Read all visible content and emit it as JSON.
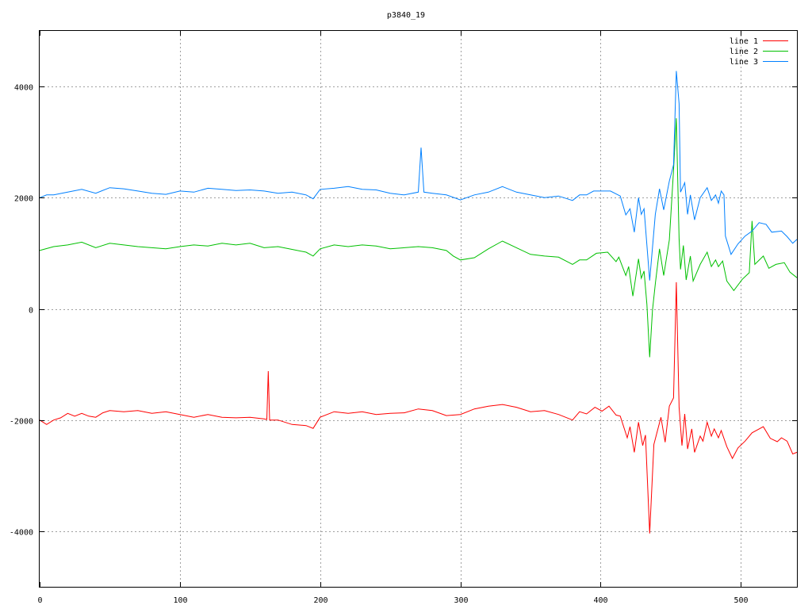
{
  "chart_data": {
    "type": "line",
    "title": "p3840_19",
    "xlabel": "",
    "ylabel": "",
    "xlim": [
      0,
      540
    ],
    "ylim": [
      -5000,
      5000
    ],
    "xticks": [
      0,
      100,
      200,
      300,
      400,
      500
    ],
    "yticks": [
      -4000,
      -2000,
      0,
      2000,
      4000
    ],
    "grid": true,
    "legend_position": "top-right",
    "series": [
      {
        "name": "line 1",
        "color": "#ff0000",
        "points": [
          [
            0,
            -2000
          ],
          [
            5,
            -2080
          ],
          [
            10,
            -2000
          ],
          [
            15,
            -1960
          ],
          [
            20,
            -1880
          ],
          [
            25,
            -1930
          ],
          [
            30,
            -1880
          ],
          [
            35,
            -1930
          ],
          [
            40,
            -1950
          ],
          [
            45,
            -1870
          ],
          [
            50,
            -1830
          ],
          [
            60,
            -1850
          ],
          [
            70,
            -1830
          ],
          [
            80,
            -1880
          ],
          [
            90,
            -1850
          ],
          [
            100,
            -1900
          ],
          [
            110,
            -1950
          ],
          [
            120,
            -1900
          ],
          [
            130,
            -1950
          ],
          [
            140,
            -1960
          ],
          [
            150,
            -1950
          ],
          [
            160,
            -1980
          ],
          [
            162,
            -1990
          ],
          [
            163,
            -1120
          ],
          [
            164,
            -2000
          ],
          [
            170,
            -2000
          ],
          [
            180,
            -2080
          ],
          [
            190,
            -2100
          ],
          [
            195,
            -2150
          ],
          [
            200,
            -1950
          ],
          [
            210,
            -1850
          ],
          [
            220,
            -1880
          ],
          [
            230,
            -1850
          ],
          [
            240,
            -1900
          ],
          [
            250,
            -1880
          ],
          [
            260,
            -1870
          ],
          [
            270,
            -1800
          ],
          [
            280,
            -1830
          ],
          [
            290,
            -1920
          ],
          [
            300,
            -1900
          ],
          [
            310,
            -1800
          ],
          [
            320,
            -1750
          ],
          [
            330,
            -1720
          ],
          [
            340,
            -1770
          ],
          [
            350,
            -1850
          ],
          [
            360,
            -1830
          ],
          [
            370,
            -1900
          ],
          [
            380,
            -2000
          ],
          [
            385,
            -1850
          ],
          [
            390,
            -1890
          ],
          [
            396,
            -1770
          ],
          [
            401,
            -1840
          ],
          [
            406,
            -1750
          ],
          [
            411,
            -1910
          ],
          [
            414,
            -1930
          ],
          [
            419,
            -2320
          ],
          [
            421,
            -2120
          ],
          [
            424,
            -2580
          ],
          [
            427,
            -2040
          ],
          [
            430,
            -2460
          ],
          [
            432,
            -2270
          ],
          [
            435,
            -4040
          ],
          [
            438,
            -2440
          ],
          [
            443,
            -1950
          ],
          [
            446,
            -2400
          ],
          [
            449,
            -1750
          ],
          [
            452,
            -1600
          ],
          [
            454,
            480
          ],
          [
            456,
            -1770
          ],
          [
            458,
            -2460
          ],
          [
            460,
            -1890
          ],
          [
            462,
            -2520
          ],
          [
            465,
            -2160
          ],
          [
            467,
            -2580
          ],
          [
            471,
            -2290
          ],
          [
            473,
            -2380
          ],
          [
            476,
            -2040
          ],
          [
            479,
            -2290
          ],
          [
            481,
            -2160
          ],
          [
            484,
            -2320
          ],
          [
            486,
            -2190
          ],
          [
            490,
            -2480
          ],
          [
            494,
            -2690
          ],
          [
            498,
            -2500
          ],
          [
            503,
            -2380
          ],
          [
            508,
            -2230
          ],
          [
            516,
            -2120
          ],
          [
            521,
            -2330
          ],
          [
            526,
            -2390
          ],
          [
            529,
            -2320
          ],
          [
            533,
            -2380
          ],
          [
            537,
            -2610
          ],
          [
            540,
            -2580
          ]
        ]
      },
      {
        "name": "line 2",
        "color": "#00c000",
        "points": [
          [
            0,
            1050
          ],
          [
            10,
            1120
          ],
          [
            20,
            1150
          ],
          [
            30,
            1200
          ],
          [
            40,
            1100
          ],
          [
            50,
            1180
          ],
          [
            60,
            1150
          ],
          [
            70,
            1120
          ],
          [
            80,
            1100
          ],
          [
            90,
            1080
          ],
          [
            100,
            1120
          ],
          [
            110,
            1150
          ],
          [
            120,
            1130
          ],
          [
            130,
            1180
          ],
          [
            140,
            1150
          ],
          [
            150,
            1180
          ],
          [
            160,
            1100
          ],
          [
            170,
            1120
          ],
          [
            180,
            1070
          ],
          [
            190,
            1020
          ],
          [
            195,
            950
          ],
          [
            200,
            1080
          ],
          [
            210,
            1150
          ],
          [
            220,
            1120
          ],
          [
            230,
            1150
          ],
          [
            240,
            1130
          ],
          [
            250,
            1080
          ],
          [
            260,
            1100
          ],
          [
            270,
            1120
          ],
          [
            280,
            1100
          ],
          [
            290,
            1050
          ],
          [
            295,
            950
          ],
          [
            300,
            880
          ],
          [
            310,
            920
          ],
          [
            320,
            1080
          ],
          [
            330,
            1220
          ],
          [
            340,
            1100
          ],
          [
            350,
            980
          ],
          [
            360,
            950
          ],
          [
            370,
            930
          ],
          [
            380,
            800
          ],
          [
            385,
            880
          ],
          [
            390,
            880
          ],
          [
            397,
            1000
          ],
          [
            405,
            1020
          ],
          [
            411,
            850
          ],
          [
            413,
            930
          ],
          [
            418,
            600
          ],
          [
            420,
            760
          ],
          [
            423,
            230
          ],
          [
            427,
            900
          ],
          [
            429,
            550
          ],
          [
            431,
            680
          ],
          [
            433,
            80
          ],
          [
            435,
            -870
          ],
          [
            437,
            -30
          ],
          [
            439,
            450
          ],
          [
            442,
            1080
          ],
          [
            445,
            600
          ],
          [
            449,
            1240
          ],
          [
            452,
            2500
          ],
          [
            454,
            3430
          ],
          [
            456,
            1260
          ],
          [
            457,
            710
          ],
          [
            459,
            1140
          ],
          [
            461,
            520
          ],
          [
            464,
            950
          ],
          [
            466,
            500
          ],
          [
            471,
            800
          ],
          [
            476,
            1020
          ],
          [
            479,
            760
          ],
          [
            482,
            880
          ],
          [
            484,
            760
          ],
          [
            487,
            860
          ],
          [
            490,
            500
          ],
          [
            495,
            330
          ],
          [
            501,
            530
          ],
          [
            506,
            650
          ],
          [
            508,
            1580
          ],
          [
            510,
            800
          ],
          [
            516,
            950
          ],
          [
            520,
            730
          ],
          [
            525,
            800
          ],
          [
            531,
            830
          ],
          [
            535,
            660
          ],
          [
            540,
            560
          ]
        ]
      },
      {
        "name": "line 3",
        "color": "#0080ff",
        "points": [
          [
            0,
            2000
          ],
          [
            5,
            2050
          ],
          [
            10,
            2050
          ],
          [
            20,
            2100
          ],
          [
            30,
            2150
          ],
          [
            40,
            2080
          ],
          [
            50,
            2180
          ],
          [
            60,
            2160
          ],
          [
            70,
            2120
          ],
          [
            80,
            2080
          ],
          [
            90,
            2060
          ],
          [
            100,
            2120
          ],
          [
            110,
            2100
          ],
          [
            120,
            2170
          ],
          [
            130,
            2150
          ],
          [
            140,
            2130
          ],
          [
            150,
            2140
          ],
          [
            160,
            2120
          ],
          [
            170,
            2080
          ],
          [
            180,
            2100
          ],
          [
            190,
            2050
          ],
          [
            195,
            1980
          ],
          [
            200,
            2150
          ],
          [
            210,
            2170
          ],
          [
            220,
            2200
          ],
          [
            230,
            2150
          ],
          [
            240,
            2140
          ],
          [
            250,
            2080
          ],
          [
            260,
            2050
          ],
          [
            270,
            2100
          ],
          [
            272,
            2900
          ],
          [
            274,
            2100
          ],
          [
            280,
            2080
          ],
          [
            290,
            2050
          ],
          [
            300,
            1960
          ],
          [
            310,
            2050
          ],
          [
            320,
            2100
          ],
          [
            330,
            2200
          ],
          [
            340,
            2100
          ],
          [
            350,
            2050
          ],
          [
            360,
            2000
          ],
          [
            370,
            2030
          ],
          [
            380,
            1950
          ],
          [
            385,
            2050
          ],
          [
            390,
            2050
          ],
          [
            395,
            2120
          ],
          [
            407,
            2120
          ],
          [
            414,
            2030
          ],
          [
            418,
            1690
          ],
          [
            421,
            1800
          ],
          [
            424,
            1380
          ],
          [
            427,
            2000
          ],
          [
            429,
            1700
          ],
          [
            431,
            1800
          ],
          [
            435,
            510
          ],
          [
            439,
            1700
          ],
          [
            442,
            2160
          ],
          [
            445,
            1780
          ],
          [
            449,
            2300
          ],
          [
            452,
            2590
          ],
          [
            454,
            4280
          ],
          [
            456,
            3690
          ],
          [
            457,
            2100
          ],
          [
            460,
            2270
          ],
          [
            462,
            1700
          ],
          [
            464,
            2050
          ],
          [
            467,
            1600
          ],
          [
            471,
            2000
          ],
          [
            476,
            2180
          ],
          [
            479,
            1950
          ],
          [
            482,
            2050
          ],
          [
            484,
            1900
          ],
          [
            486,
            2120
          ],
          [
            488,
            2050
          ],
          [
            489,
            1310
          ],
          [
            493,
            980
          ],
          [
            498,
            1170
          ],
          [
            503,
            1310
          ],
          [
            508,
            1400
          ],
          [
            513,
            1550
          ],
          [
            518,
            1520
          ],
          [
            522,
            1380
          ],
          [
            529,
            1400
          ],
          [
            533,
            1300
          ],
          [
            537,
            1180
          ],
          [
            540,
            1250
          ]
        ]
      }
    ]
  }
}
